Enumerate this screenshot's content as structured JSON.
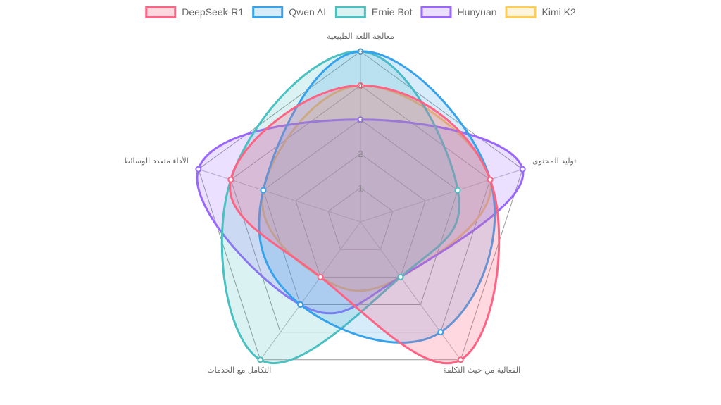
{
  "chart_data": {
    "type": "radar",
    "labels": [
      "معالجة اللغة الطبيعية",
      "توليد المحتوى",
      "الفعالية من حيث التكلفة",
      "التكامل مع الخدمات",
      "الأداء متعدد الوسائط"
    ],
    "rlim": [
      0,
      5
    ],
    "ticks": [
      "1",
      "2",
      "3",
      "4",
      "5"
    ],
    "grid": true,
    "legend_position": "top",
    "series": [
      {
        "name": "DeepSeek-R1",
        "values": [
          4,
          4,
          5,
          2,
          4
        ],
        "color": "#ff6384",
        "fill": "rgba(255,99,132,0.25)"
      },
      {
        "name": "Qwen AI",
        "values": [
          5,
          4,
          4,
          3,
          3
        ],
        "color": "#36a2eb",
        "fill": "rgba(54,162,235,0.2)"
      },
      {
        "name": "Ernie Bot",
        "values": [
          5,
          3,
          2,
          5,
          4
        ],
        "color": "#4bc0c0",
        "fill": "rgba(75,192,192,0.2)"
      },
      {
        "name": "Hunyuan",
        "values": [
          3,
          5,
          2,
          3,
          5
        ],
        "color": "#9966ff",
        "fill": "rgba(153,102,255,0.2)"
      },
      {
        "name": "Kimi K2",
        "values": [
          4,
          4,
          2,
          2,
          3
        ],
        "color": "#ffcd56",
        "fill": "rgba(255,205,86,0.2)"
      }
    ]
  }
}
